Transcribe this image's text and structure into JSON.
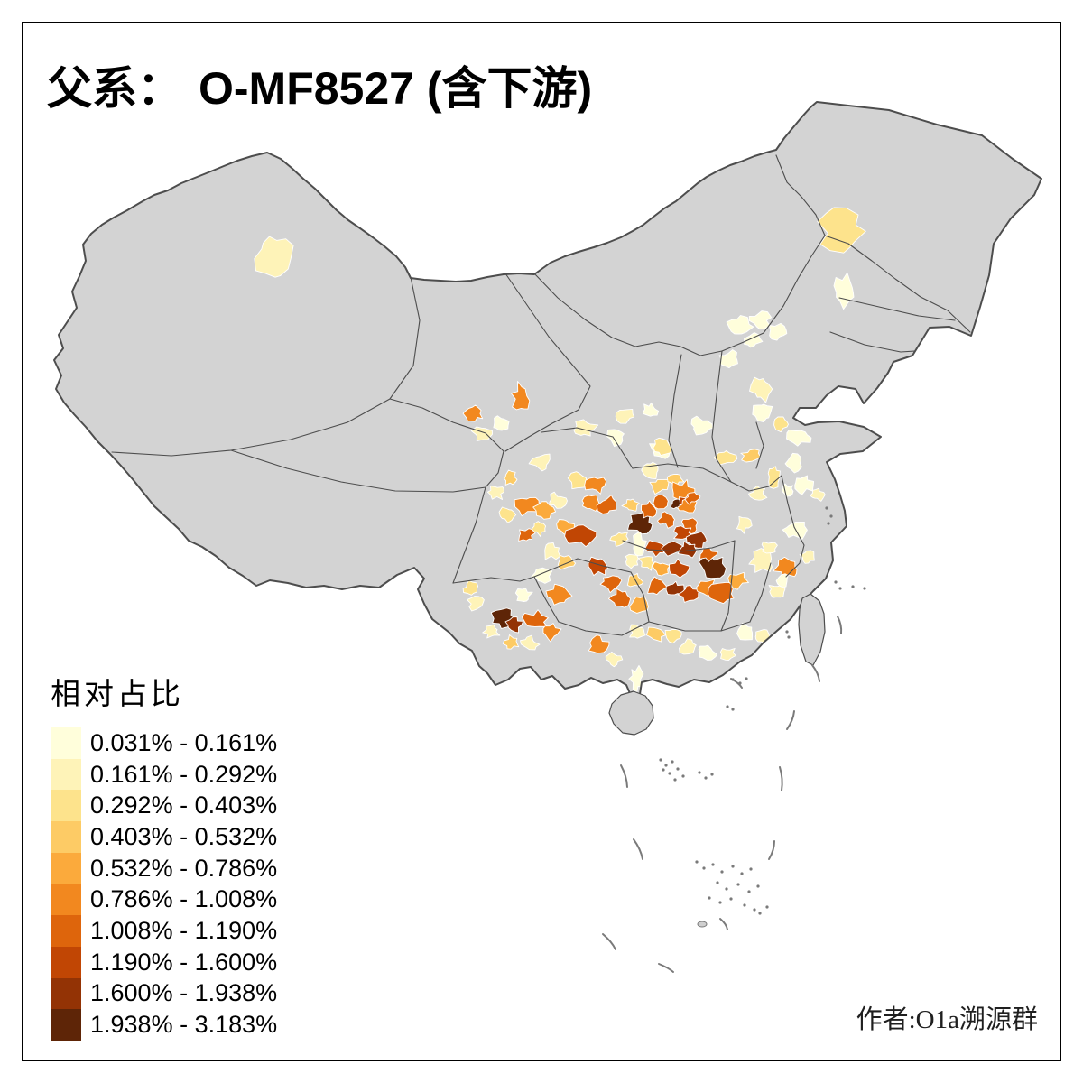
{
  "title": {
    "prefix": "父系：",
    "main": "O-MF8527 (含下游)"
  },
  "legend": {
    "title": "相对占比",
    "items": [
      {
        "label": "0.031% - 0.161%",
        "color": "#FFFEDB"
      },
      {
        "label": "0.161% - 0.292%",
        "color": "#FEF3B8"
      },
      {
        "label": "0.292% - 0.403%",
        "color": "#FDE38C"
      },
      {
        "label": "0.403% - 0.532%",
        "color": "#FDCB65"
      },
      {
        "label": "0.532% - 0.786%",
        "color": "#FBAA3C"
      },
      {
        "label": "0.786% - 1.008%",
        "color": "#F2881F"
      },
      {
        "label": "1.008% - 1.190%",
        "color": "#DE650C"
      },
      {
        "label": "1.190% - 1.600%",
        "color": "#C14604"
      },
      {
        "label": "1.600% - 1.938%",
        "color": "#933305"
      },
      {
        "label": "1.938% - 3.183%",
        "color": "#5E2507"
      }
    ]
  },
  "credit": "作者:O1a溯源群",
  "map": {
    "no_data_color": "#D3D3D3",
    "land_border_color": "#4D4D4D",
    "prefecture_border_color": "#FFFFFF",
    "sea_mark_color": "#7A7A7A",
    "frame_color": "#000000"
  }
}
